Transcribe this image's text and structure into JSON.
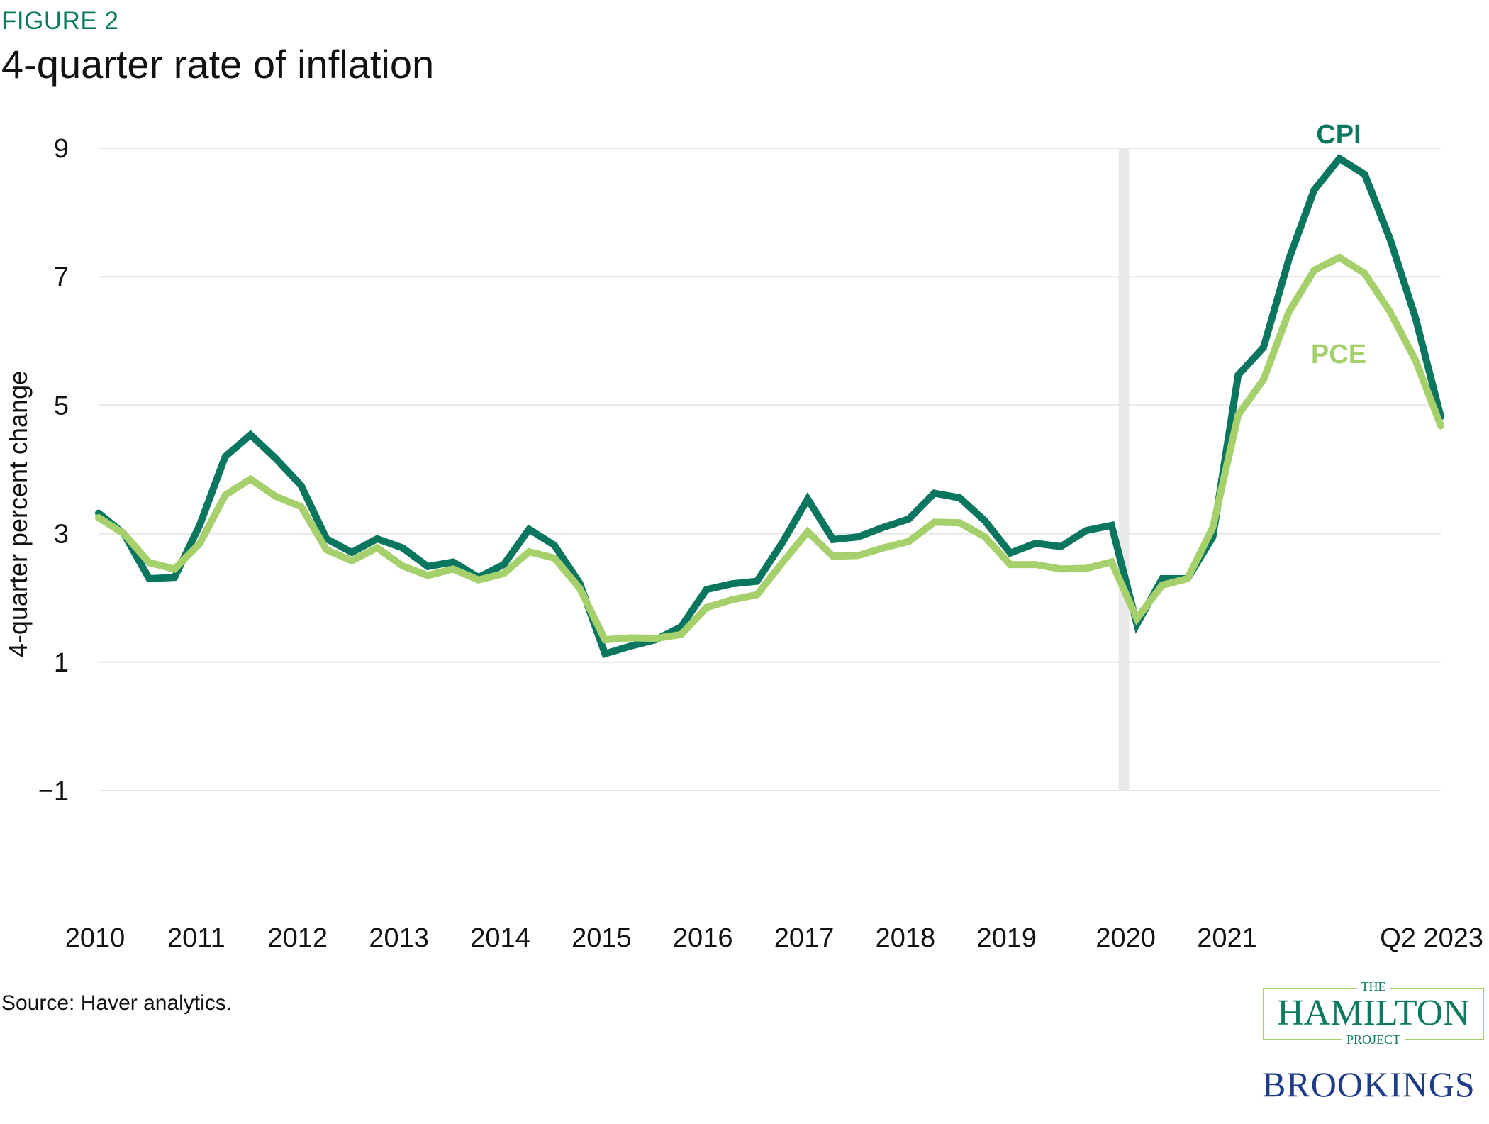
{
  "figure_label": "FIGURE 2",
  "title": "4-quarter rate of inflation",
  "source": "Source: Haver analytics.",
  "logo": {
    "the": "THE",
    "name": "HAMILTON",
    "project": "PROJECT",
    "org": "BROOKINGS"
  },
  "chart_data": {
    "type": "line",
    "title": "4-quarter rate of inflation",
    "ylabel": "4-quarter percent change",
    "xlabel": "",
    "ylim": [
      -1,
      9
    ],
    "yticks": [
      9,
      7,
      5,
      3,
      1,
      -1
    ],
    "ytick_labels": [
      "9",
      "7",
      "5",
      "3",
      "1",
      "−1"
    ],
    "grid": "horizontal",
    "start": "2010 Q1",
    "end": "2023 Q2",
    "frequency": "quarterly",
    "xtick_labels": [
      {
        "label": "2010",
        "at": "2010 Q1"
      },
      {
        "label": "2011",
        "at": "2011 Q1"
      },
      {
        "label": "2012",
        "at": "2012 Q1"
      },
      {
        "label": "2013",
        "at": "2013 Q1"
      },
      {
        "label": "2014",
        "at": "2014 Q1"
      },
      {
        "label": "2015",
        "at": "2015 Q1"
      },
      {
        "label": "2016",
        "at": "2016 Q1"
      },
      {
        "label": "2017",
        "at": "2017 Q1"
      },
      {
        "label": "2018",
        "at": "2018 Q1"
      },
      {
        "label": "2019",
        "at": "2019 Q1"
      },
      {
        "label": "2020",
        "at": "2020 Q1"
      },
      {
        "label": "2021",
        "at": "2021 Q1"
      },
      {
        "label": "Q2 2023",
        "at": "2023 Q2"
      }
    ],
    "shaded_period": {
      "from": "2020 Q1",
      "to": "2020 Q2",
      "color": "#e8e8e8"
    },
    "series": [
      {
        "name": "CPI",
        "color": "#0b7660",
        "values": [
          3.32,
          3.0,
          2.3,
          2.32,
          3.14,
          4.2,
          4.54,
          4.17,
          3.75,
          2.92,
          2.71,
          2.92,
          2.78,
          2.49,
          2.56,
          2.32,
          2.52,
          3.07,
          2.82,
          2.23,
          1.13,
          1.25,
          1.35,
          1.55,
          2.13,
          2.22,
          2.26,
          2.86,
          3.54,
          2.91,
          2.95,
          3.1,
          3.23,
          3.63,
          3.56,
          3.2,
          2.7,
          2.85,
          2.8,
          3.05,
          3.13,
          1.59,
          2.3,
          2.3,
          2.95,
          5.47,
          5.9,
          7.27,
          8.35,
          8.84,
          8.59,
          7.58,
          6.36,
          4.82
        ]
      },
      {
        "name": "PCE",
        "color": "#a6d06b",
        "values": [
          3.25,
          3.0,
          2.55,
          2.45,
          2.85,
          3.6,
          3.85,
          3.58,
          3.42,
          2.75,
          2.58,
          2.78,
          2.5,
          2.35,
          2.45,
          2.28,
          2.38,
          2.72,
          2.62,
          2.15,
          1.35,
          1.38,
          1.37,
          1.43,
          1.85,
          1.97,
          2.05,
          2.55,
          3.03,
          2.65,
          2.66,
          2.78,
          2.88,
          3.18,
          3.17,
          2.95,
          2.52,
          2.52,
          2.45,
          2.46,
          2.56,
          1.68,
          2.2,
          2.3,
          3.1,
          4.85,
          5.4,
          6.45,
          7.1,
          7.3,
          7.05,
          6.45,
          5.7,
          4.68
        ]
      }
    ]
  }
}
